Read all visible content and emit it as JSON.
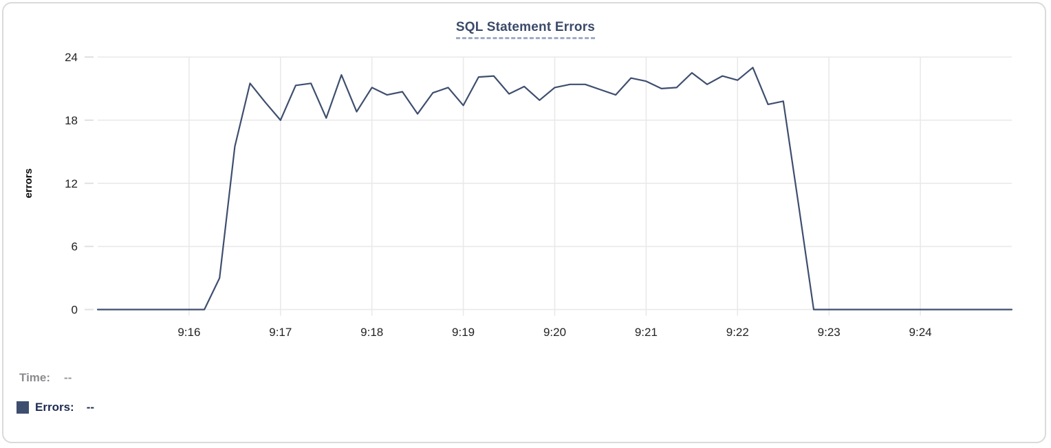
{
  "card": {
    "background": "#ffffff",
    "border_color": "#dadada"
  },
  "chart_data": {
    "type": "line",
    "title": "SQL Statement Errors",
    "xlabel": "",
    "ylabel": "errors",
    "ylim": [
      0,
      24
    ],
    "y_ticks": [
      0,
      6,
      12,
      18,
      24
    ],
    "x_tick_labels": [
      "9:16",
      "9:17",
      "9:18",
      "9:19",
      "9:20",
      "9:21",
      "9:22",
      "9:23",
      "9:24"
    ],
    "x_range": [
      "9:15:00",
      "9:25:00"
    ],
    "grid": true,
    "legend_position": "bottom-left",
    "series": [
      {
        "name": "Errors",
        "color": "#3e4e6e",
        "times": [
          "9:15:00",
          "9:15:10",
          "9:15:20",
          "9:15:30",
          "9:15:40",
          "9:15:50",
          "9:16:00",
          "9:16:10",
          "9:16:20",
          "9:16:30",
          "9:16:40",
          "9:16:50",
          "9:17:00",
          "9:17:10",
          "9:17:20",
          "9:17:30",
          "9:17:40",
          "9:17:50",
          "9:18:00",
          "9:18:10",
          "9:18:20",
          "9:18:30",
          "9:18:40",
          "9:18:50",
          "9:19:00",
          "9:19:10",
          "9:19:20",
          "9:19:30",
          "9:19:40",
          "9:19:50",
          "9:20:00",
          "9:20:10",
          "9:20:20",
          "9:20:30",
          "9:20:40",
          "9:20:50",
          "9:21:00",
          "9:21:10",
          "9:21:20",
          "9:21:30",
          "9:21:40",
          "9:21:50",
          "9:22:00",
          "9:22:10",
          "9:22:20",
          "9:22:30",
          "9:22:40",
          "9:22:50",
          "9:23:00",
          "9:23:10",
          "9:23:20",
          "9:23:30",
          "9:23:40",
          "9:23:50",
          "9:24:00",
          "9:24:10",
          "9:24:20",
          "9:24:30",
          "9:24:40",
          "9:24:50",
          "9:25:00"
        ],
        "values": [
          0,
          0,
          0,
          0,
          0,
          0,
          0,
          0,
          3,
          15.5,
          21.5,
          19.7,
          18,
          21.3,
          21.5,
          18.2,
          22.3,
          18.8,
          21.1,
          20.4,
          20.7,
          18.6,
          20.6,
          21.1,
          19.4,
          22.1,
          22.2,
          20.5,
          21.2,
          19.9,
          21.1,
          21.4,
          21.4,
          20.9,
          20.4,
          22,
          21.7,
          21,
          21.1,
          22.5,
          21.4,
          22.2,
          21.8,
          23,
          19.5,
          19.8,
          10,
          0,
          0,
          0,
          0,
          0,
          0,
          0,
          0,
          0,
          0,
          0,
          0,
          0,
          0
        ]
      }
    ]
  },
  "readout": {
    "time_label": "Time:",
    "time_value": "--",
    "errors_label": "Errors:",
    "errors_value": "--"
  },
  "colors": {
    "title_text": "#3b4a6b",
    "title_underline": "#9fabc6",
    "grid_line": "#e8e8e8",
    "tick_dash": "#e0e0e0",
    "axis_tick_text": "#222222",
    "axis_title_text": "#0a0a0a",
    "series_line": "#3e4e6e",
    "time_label_text": "#8b8b8f",
    "errors_label_text": "#1d2b52"
  }
}
